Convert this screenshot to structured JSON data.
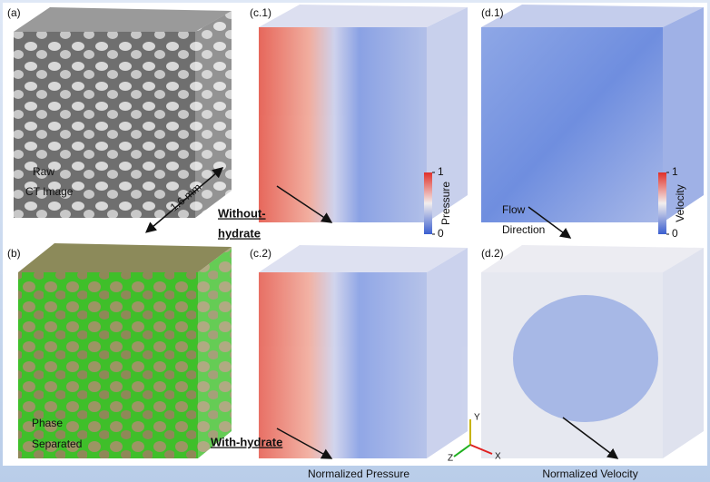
{
  "panels": {
    "a": {
      "label": "(a)",
      "caption": [
        "Raw",
        "CT Image"
      ],
      "scale": "1.6 mm"
    },
    "b": {
      "label": "(b)",
      "caption": [
        "Phase",
        "Separated"
      ]
    },
    "c1": {
      "label": "(c.1)"
    },
    "c2": {
      "label": "(c.2)"
    },
    "d1": {
      "label": "(d.1)",
      "caption": [
        "Flow",
        "Direction"
      ]
    },
    "d2": {
      "label": "(d.2)"
    }
  },
  "row_labels": {
    "without": [
      "Without-",
      "hydrate"
    ],
    "with": "With-hydrate"
  },
  "pressure_colorbar": {
    "label": "Pressure",
    "ticks": [
      0,
      1
    ]
  },
  "velocity_colorbar": {
    "label": "Velocity",
    "ticks": [
      0,
      1
    ]
  },
  "column_titles": {
    "pressure": "Normalized Pressure",
    "velocity": "Normalized Velocity"
  },
  "axes_icon": {
    "y": "Y",
    "z": "Z",
    "x": "X"
  }
}
